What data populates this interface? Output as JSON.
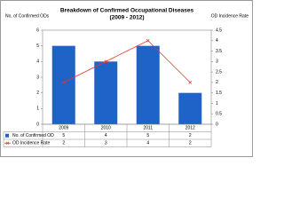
{
  "chart_data": {
    "type": "bar-line",
    "title": "Breakdown of Confirmed Occupational Diseases",
    "subtitle": "(2009 - 2012)",
    "y_label": "No. of Confirmed ODs",
    "y2_label": "OD Incidence Rate",
    "categories": [
      "2009",
      "2010",
      "2011",
      "2012"
    ],
    "series": [
      {
        "name": "No. of Confirmed OD",
        "type": "bar",
        "color": "#1f62c8",
        "values": [
          5,
          4,
          5,
          2
        ]
      },
      {
        "name": "OD Incidence Rate",
        "type": "line",
        "color": "#e8352c",
        "axis": "y2",
        "values": [
          2,
          3,
          4,
          2
        ]
      }
    ],
    "ylim": [
      0,
      6
    ],
    "yticks": [
      0,
      1,
      2,
      3,
      4,
      5,
      6
    ],
    "y2lim": [
      0,
      4.5
    ],
    "y2ticks": [
      0,
      0.5,
      1,
      1.5,
      2,
      2.5,
      3,
      3.5,
      4,
      4.5
    ]
  }
}
